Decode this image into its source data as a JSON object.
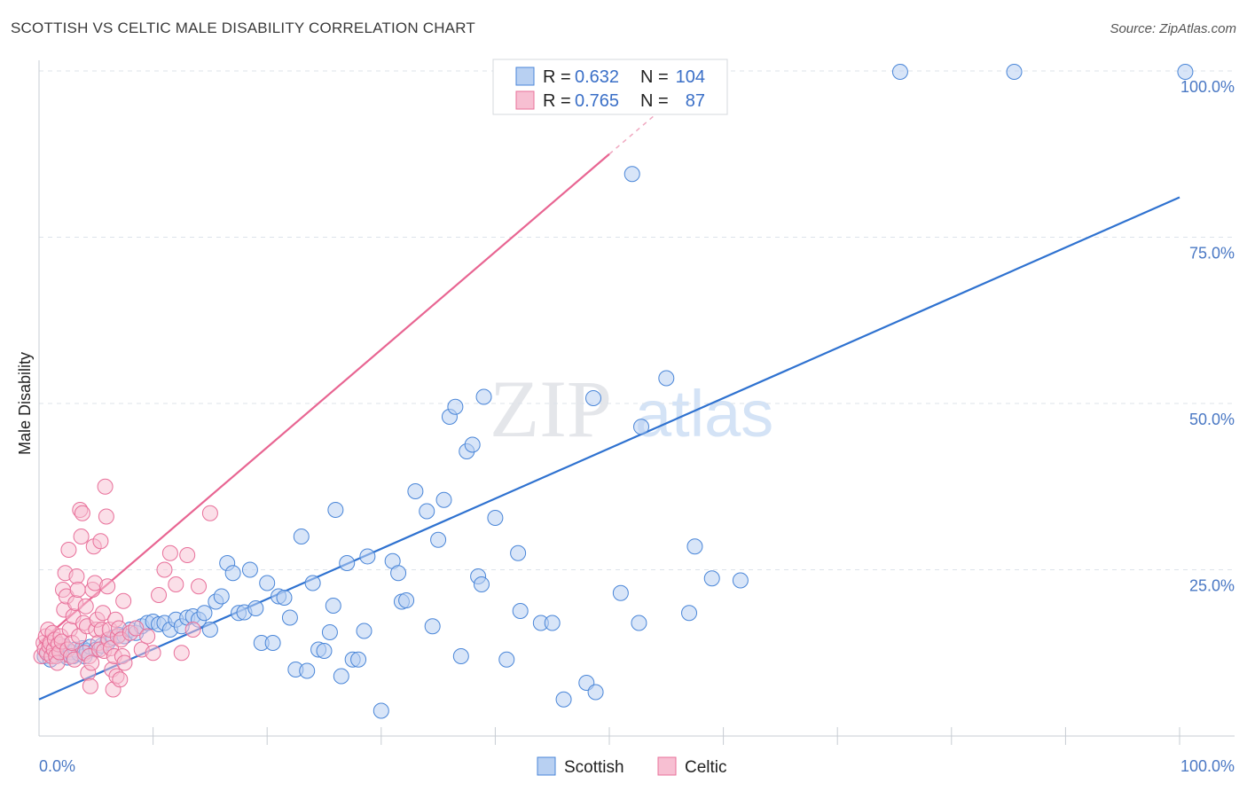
{
  "title": "SCOTTISH VS CELTIC MALE DISABILITY CORRELATION CHART",
  "source": "Source: ZipAtlas.com",
  "watermark": {
    "zip": "ZIP",
    "atlas": "atlas"
  },
  "colors": {
    "scottish": "#4a86d8",
    "scottish_fill": "#b8d0f2",
    "celtic": "#e8709a",
    "celtic_fill": "#f7bfd2",
    "axis_text": "#4a78c4",
    "grid": "#dde3ea"
  },
  "legend": {
    "rows": [
      {
        "r_label": "R =",
        "r_value": "0.632",
        "n_label": "N =",
        "n_value": "104"
      },
      {
        "r_label": "R =",
        "r_value": "0.765",
        "n_label": "N =",
        "n_value": "87"
      }
    ]
  },
  "chart_data": {
    "type": "scatter",
    "title": "SCOTTISH VS CELTIC MALE DISABILITY CORRELATION CHART",
    "xlabel": "",
    "ylabel": "Male Disability",
    "xlim": [
      0,
      100
    ],
    "ylim": [
      0,
      100
    ],
    "x_ticks": [
      {
        "value": 0,
        "label": "0.0%"
      },
      {
        "value": 100,
        "label": "100.0%"
      }
    ],
    "y_ticks": [
      {
        "value": 25,
        "label": "25.0%"
      },
      {
        "value": 50,
        "label": "50.0%"
      },
      {
        "value": 75,
        "label": "75.0%"
      },
      {
        "value": 100,
        "label": "100.0%"
      }
    ],
    "legend_entries": [
      "Scottish",
      "Celtic"
    ],
    "series": [
      {
        "name": "Scottish",
        "r": 0.632,
        "n": 104,
        "trend": {
          "x0": 0,
          "y0": 5.5,
          "x1": 100,
          "y1": 81
        },
        "points": [
          [
            0.5,
            12
          ],
          [
            0.8,
            12.5
          ],
          [
            1,
            11.5
          ],
          [
            1.2,
            13
          ],
          [
            1.5,
            12
          ],
          [
            1.8,
            12.8
          ],
          [
            2,
            12.2
          ],
          [
            2.2,
            13.5
          ],
          [
            2.5,
            11.8
          ],
          [
            2.8,
            12.6
          ],
          [
            3,
            12
          ],
          [
            3.2,
            13
          ],
          [
            3.5,
            12.4
          ],
          [
            3.8,
            13.2
          ],
          [
            4,
            12
          ],
          [
            4.2,
            12.8
          ],
          [
            4.5,
            13.4
          ],
          [
            5,
            13
          ],
          [
            5.5,
            13.6
          ],
          [
            6,
            14
          ],
          [
            6.5,
            14.8
          ],
          [
            7,
            15.2
          ],
          [
            7.5,
            15
          ],
          [
            8,
            16
          ],
          [
            8.5,
            15.5
          ],
          [
            9,
            16.5
          ],
          [
            9.5,
            17
          ],
          [
            10,
            17.2
          ],
          [
            10.5,
            16.8
          ],
          [
            11,
            17
          ],
          [
            11.5,
            16
          ],
          [
            12,
            17.5
          ],
          [
            12.5,
            16.5
          ],
          [
            13,
            17.8
          ],
          [
            13.5,
            18
          ],
          [
            14,
            17.5
          ],
          [
            14.5,
            18.5
          ],
          [
            15,
            16
          ],
          [
            15.5,
            20.2
          ],
          [
            16,
            21
          ],
          [
            16.5,
            26
          ],
          [
            17,
            24.5
          ],
          [
            17.5,
            18.5
          ],
          [
            18,
            18.6
          ],
          [
            18.5,
            25
          ],
          [
            19,
            19.2
          ],
          [
            19.5,
            14
          ],
          [
            20,
            23
          ],
          [
            20.5,
            14
          ],
          [
            21,
            21
          ],
          [
            21.5,
            20.8
          ],
          [
            22,
            17.8
          ],
          [
            22.5,
            10
          ],
          [
            23,
            30
          ],
          [
            23.5,
            9.8
          ],
          [
            24,
            23
          ],
          [
            24.5,
            13
          ],
          [
            25,
            12.8
          ],
          [
            25.5,
            15.6
          ],
          [
            25.8,
            19.6
          ],
          [
            26,
            34
          ],
          [
            26.5,
            9
          ],
          [
            27,
            26
          ],
          [
            27.5,
            11.5
          ],
          [
            28,
            11.5
          ],
          [
            28.5,
            15.8
          ],
          [
            28.8,
            27
          ],
          [
            30,
            3.8
          ],
          [
            31,
            26.3
          ],
          [
            31.5,
            24.5
          ],
          [
            31.8,
            20.2
          ],
          [
            32.2,
            20.4
          ],
          [
            33,
            36.8
          ],
          [
            34,
            33.8
          ],
          [
            34.5,
            16.5
          ],
          [
            35,
            29.5
          ],
          [
            35.5,
            35.5
          ],
          [
            36,
            48
          ],
          [
            36.5,
            49.5
          ],
          [
            37,
            12
          ],
          [
            37.5,
            42.8
          ],
          [
            38,
            43.8
          ],
          [
            38.5,
            24
          ],
          [
            38.8,
            22.8
          ],
          [
            39,
            51
          ],
          [
            40,
            32.8
          ],
          [
            41,
            11.5
          ],
          [
            42,
            27.5
          ],
          [
            42.2,
            18.8
          ],
          [
            44,
            17
          ],
          [
            45,
            17
          ],
          [
            46,
            5.5
          ],
          [
            48,
            8
          ],
          [
            48.6,
            50.8
          ],
          [
            48.8,
            6.6
          ],
          [
            51,
            21.5
          ],
          [
            52,
            84.5
          ],
          [
            52.6,
            17
          ],
          [
            52.8,
            46.5
          ],
          [
            55,
            53.8
          ],
          [
            57,
            18.5
          ],
          [
            57.5,
            28.5
          ],
          [
            59,
            23.7
          ],
          [
            61.5,
            23.4
          ]
        ]
      },
      {
        "name": "Celtic",
        "r": 0.765,
        "n": 87,
        "trend": {
          "x0": 0,
          "y0": 14,
          "x1": 50,
          "y1": 87.5
        },
        "points": [
          [
            0.2,
            12
          ],
          [
            0.4,
            14
          ],
          [
            0.5,
            13
          ],
          [
            0.6,
            15
          ],
          [
            0.7,
            12.5
          ],
          [
            0.8,
            16
          ],
          [
            0.9,
            13.5
          ],
          [
            1,
            14
          ],
          [
            1.1,
            12
          ],
          [
            1.2,
            15.5
          ],
          [
            1.3,
            13
          ],
          [
            1.4,
            14.5
          ],
          [
            1.5,
            12
          ],
          [
            1.6,
            11
          ],
          [
            1.7,
            13.8
          ],
          [
            1.8,
            12.6
          ],
          [
            1.9,
            15
          ],
          [
            2,
            14.2
          ],
          [
            2.1,
            22
          ],
          [
            2.2,
            19
          ],
          [
            2.3,
            24.5
          ],
          [
            2.4,
            21
          ],
          [
            2.5,
            13
          ],
          [
            2.6,
            28
          ],
          [
            2.7,
            16
          ],
          [
            2.8,
            12
          ],
          [
            2.9,
            14
          ],
          [
            3,
            18
          ],
          [
            3.1,
            11.5
          ],
          [
            3.2,
            20
          ],
          [
            3.3,
            24
          ],
          [
            3.4,
            22
          ],
          [
            3.5,
            15
          ],
          [
            3.6,
            34
          ],
          [
            3.7,
            30
          ],
          [
            3.8,
            33.5
          ],
          [
            3.9,
            17
          ],
          [
            4,
            12.5
          ],
          [
            4.1,
            19.5
          ],
          [
            4.2,
            16.5
          ],
          [
            4.3,
            9.5
          ],
          [
            4.4,
            12
          ],
          [
            4.5,
            7.5
          ],
          [
            4.6,
            11
          ],
          [
            4.7,
            22
          ],
          [
            4.8,
            28.5
          ],
          [
            4.9,
            23
          ],
          [
            5,
            16
          ],
          [
            5.1,
            17.5
          ],
          [
            5.2,
            14
          ],
          [
            5.3,
            13
          ],
          [
            5.4,
            29.3
          ],
          [
            5.5,
            16
          ],
          [
            5.6,
            18.5
          ],
          [
            5.7,
            12.8
          ],
          [
            5.8,
            37.5
          ],
          [
            5.9,
            33
          ],
          [
            6,
            22.5
          ],
          [
            6.1,
            14.5
          ],
          [
            6.2,
            16
          ],
          [
            6.3,
            13.2
          ],
          [
            6.4,
            10
          ],
          [
            6.5,
            7
          ],
          [
            6.6,
            12
          ],
          [
            6.7,
            17.5
          ],
          [
            6.8,
            9
          ],
          [
            6.9,
            15
          ],
          [
            7,
            16.2
          ],
          [
            7.1,
            8.5
          ],
          [
            7.2,
            14.5
          ],
          [
            7.3,
            12
          ],
          [
            7.4,
            20.3
          ],
          [
            7.5,
            11
          ],
          [
            8,
            15.5
          ],
          [
            8.5,
            16.2
          ],
          [
            9,
            13
          ],
          [
            9.5,
            15
          ],
          [
            10,
            12.5
          ],
          [
            10.5,
            21.2
          ],
          [
            11,
            25
          ],
          [
            11.5,
            27.5
          ],
          [
            12,
            22.8
          ],
          [
            12.5,
            12.5
          ],
          [
            13,
            27.2
          ],
          [
            13.5,
            16
          ],
          [
            14,
            22.5
          ],
          [
            15,
            33.5
          ]
        ]
      }
    ]
  },
  "bottom_legend": [
    {
      "label": "Scottish"
    },
    {
      "label": "Celtic"
    }
  ]
}
